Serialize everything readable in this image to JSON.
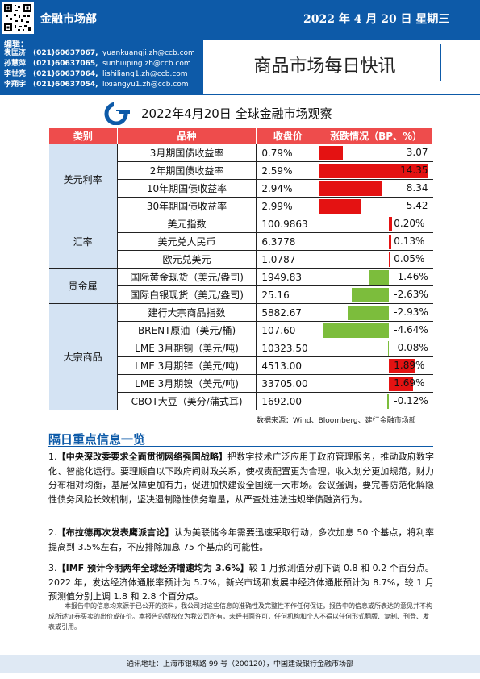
{
  "header": {
    "department": "金融市场部",
    "date": "2022 年 4 月 20 日  星期三"
  },
  "editors": {
    "title": "编辑：",
    "list": [
      {
        "name": "袁匡济",
        "phone": "(021)60637067,",
        "email": "yuankuangji.zh@ccb.com"
      },
      {
        "name": "孙慧萍",
        "phone": "(021)60637065,",
        "email": "sunhuiping.zh@ccb.com"
      },
      {
        "name": "李世亮",
        "phone": "(021)60637064,",
        "email": "lishiliang1.zh@ccb.com"
      },
      {
        "name": "李翔宇",
        "phone": "(021)60637054,",
        "email": "lixiangyu1.zh@ccb.com"
      }
    ]
  },
  "main_title": "商品市场每日快讯",
  "table": {
    "title": "2022年4月20日  全球金融市场观察",
    "headers": [
      "类别",
      "品种",
      "收盘价",
      "涨跌情况（BP、%）"
    ],
    "groups": [
      {
        "category": "美元利率",
        "rows": [
          {
            "item": "3月期国债收益率",
            "value": "0.79%",
            "change": "3.07",
            "change_num": 3.07
          },
          {
            "item": "2年期国债收益率",
            "value": "2.59%",
            "change": "14.35",
            "change_num": 14.35
          },
          {
            "item": "10年期国债收益率",
            "value": "2.94%",
            "change": "8.34",
            "change_num": 8.34
          },
          {
            "item": "30年期国债收益率",
            "value": "2.99%",
            "change": "5.42",
            "change_num": 5.42
          }
        ]
      },
      {
        "category": "汇率",
        "rows": [
          {
            "item": "美元指数",
            "value": "100.9863",
            "change": "0.20%",
            "change_num": 0.2
          },
          {
            "item": "美元兑人民币",
            "value": "6.3778",
            "change": "0.13%",
            "change_num": 0.13
          },
          {
            "item": "欧元兑美元",
            "value": "1.0787",
            "change": "0.05%",
            "change_num": 0.05
          }
        ]
      },
      {
        "category": "贵金属",
        "rows": [
          {
            "item": "国际黄金现货（美元/盎司)",
            "value": "1949.83",
            "change": "-1.46%",
            "change_num": -1.46
          },
          {
            "item": "国际白银现货（美元/盎司)",
            "value": "25.16",
            "change": "-2.63%",
            "change_num": -2.63
          }
        ]
      },
      {
        "category": "大宗商品",
        "rows": [
          {
            "item": "建行大宗商品指数",
            "value": "5882.67",
            "change": "-2.93%",
            "change_num": -2.93
          },
          {
            "item": "BRENT原油（美元/桶)",
            "value": "107.60",
            "change": "-4.64%",
            "change_num": -4.64
          },
          {
            "item": "LME 3月期铜（美元/吨)",
            "value": "10323.50",
            "change": "-0.08%",
            "change_num": -0.08
          },
          {
            "item": "LME 3月期锌（美元/吨)",
            "value": "4513.00",
            "change": "1.89%",
            "change_num": 1.89
          },
          {
            "item": "LME 3月期镍（美元/吨)",
            "value": "33705.00",
            "change": "1.69%",
            "change_num": 1.69
          },
          {
            "item": "CBOT大豆（美分/蒲式耳)",
            "value": "1692.00",
            "change": "-0.12%",
            "change_num": -0.12
          }
        ]
      }
    ],
    "source": "数据来源：Wind、Bloomberg、建行金融市场部"
  },
  "news": {
    "title": "隔日重点信息一览",
    "items": [
      {
        "num": "1.",
        "headline": "【中央深改委要求全面贯彻网络强国战略】",
        "body": "把数字技术广泛应用于政府管理服务，推动政府数字化、智能化运行。要理顺自以下政府间财政关系，使权责配置更为合理，收入划分更加规范，财力分布相对均衡，基层保障更加有力，促进加快建设全国统一大市场。会议强调，要完善防范化解隐性债务风险长效机制，坚决遏制隐性债务增量，从严查处违法违规举债融资行为。"
      },
      {
        "num": "2.",
        "headline": "【布拉德再次发表鹰派言论】",
        "body": "认为美联储今年需要迅速采取行动，多次加息 50 个基点，将利率提高到 3.5%左右，不应排除加息 75 个基点的可能性。"
      },
      {
        "num": "3.",
        "headline": "【IMF 预计今明两年全球经济增速均为 3.6%】",
        "body": "较 1 月预测值分别下调 0.8 和 0.2 个百分点。2022 年，发达经济体通胀率预计为 5.7%，新兴市场和发展中经济体通胀预计为 8.7%，较 1 月预测值分别上调 1.8 和 2.8 个百分点。"
      }
    ]
  },
  "disclaimer": "本报告中的信息均来源于已公开的资料，我公司对这些信息的准确性及完整性不作任何保证，报告中的信息或所表达的意见并不构成所述证券买卖的出价或征价。本报告的版权仅为我公司所有，未经书面许可，任何机构和个人不得以任何形式翻版、复制、刊登、发表或引用。",
  "footer": "通讯地址：上海市银城路 99 号（200120），中国建设银行金融市场部",
  "colors": {
    "brand_blue": "#0d5aa8",
    "header_red": "#ee4c4c",
    "up_red": "#e41212",
    "down_green": "#7cbd3c",
    "category_bg": "#d4e3f3"
  }
}
